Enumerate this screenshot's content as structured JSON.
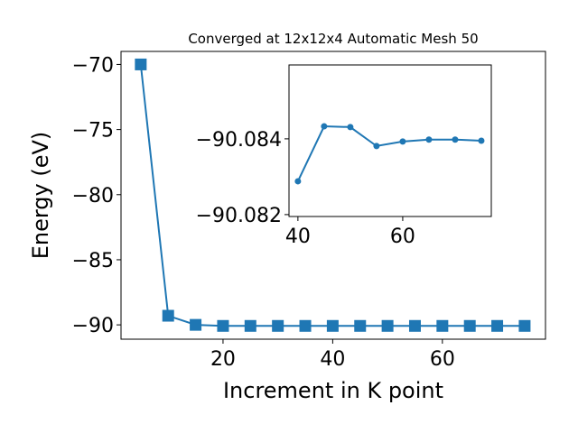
{
  "chart_data": [
    {
      "type": "line",
      "title": "Converged at 12x12x4 Automatic Mesh 50",
      "x_label": "Increment in K point",
      "y_label": "Energy (eV)",
      "x": [
        5,
        10,
        15,
        20,
        25,
        30,
        35,
        40,
        45,
        50,
        55,
        60,
        65,
        70,
        75
      ],
      "series": [
        {
          "color": "#1f77b4",
          "marker": "square",
          "values": [
            -70,
            -89.3,
            -90.0,
            -90.08,
            -90.08,
            -90.08,
            -90.08,
            -90.08,
            -90.08,
            -90.08,
            -90.08,
            -90.08,
            -90.08,
            -90.08,
            -90.08
          ]
        }
      ],
      "xlim": [
        1.4,
        78.8
      ],
      "ylim": [
        -91.1,
        -69.0
      ],
      "xticks": [
        20,
        40,
        60
      ],
      "yticks": [
        {
          "value": -90,
          "label": "−90"
        },
        {
          "value": -85,
          "label": "−85"
        },
        {
          "value": -80,
          "label": "−80"
        },
        {
          "value": -75,
          "label": "−75"
        },
        {
          "value": -70,
          "label": "−70"
        }
      ]
    },
    {
      "type": "line",
      "x": [
        40,
        45,
        50,
        55,
        60,
        65,
        70,
        75
      ],
      "series": [
        {
          "color": "#1f77b4",
          "marker": "circle",
          "values": [
            -90.08288,
            -90.08433,
            -90.08431,
            -90.08381,
            -90.08393,
            -90.08398,
            -90.08398,
            -90.08395
          ]
        }
      ],
      "xlim": [
        38.3,
        76.9
      ],
      "ylim": [
        -90.08595,
        -90.08195
      ],
      "yinverted": true,
      "xticks": [
        40,
        60
      ],
      "yticks": [
        {
          "value": -90.084,
          "label": "−90.084"
        },
        {
          "value": -90.082,
          "label": "−90.082"
        }
      ]
    }
  ]
}
